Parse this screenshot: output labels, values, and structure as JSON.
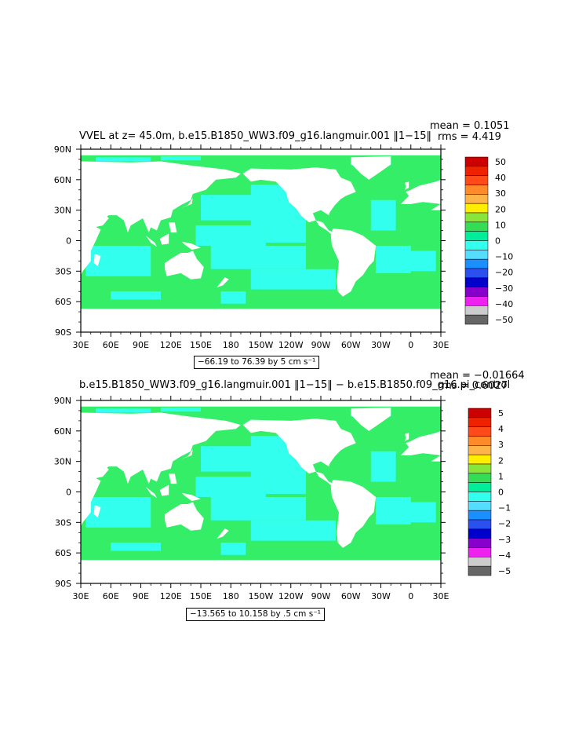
{
  "chart_data": [
    {
      "type": "heatmap",
      "title": "VVEL at z=   45.0m, b.e15.B1850_WW3.f09_g16.langmuir.001 ‖1−15‖",
      "mean_label": "mean = 0.1051",
      "rms_label": "rms = 4.419",
      "range_label": "−66.19 to 76.39 by 5 cm s⁻¹",
      "x_ticks": [
        "30E",
        "60E",
        "90E",
        "120E",
        "150E",
        "180",
        "150W",
        "120W",
        "90W",
        "60W",
        "30W",
        "0",
        "30E"
      ],
      "y_ticks": [
        "90N",
        "60N",
        "30N",
        "0",
        "30S",
        "60S",
        "90S"
      ],
      "colorbar": {
        "labels": [
          "50",
          "40",
          "30",
          "20",
          "10",
          "0",
          "−10",
          "−20",
          "−30",
          "−40",
          "−50"
        ],
        "colors": [
          "#cc0000",
          "#ee2200",
          "#ff4a1a",
          "#ff8a2a",
          "#ffb44a",
          "#ffee00",
          "#88e63a",
          "#33dd55",
          "#00ee99",
          "#33ffee",
          "#55ddff",
          "#1a90ff",
          "#2a50f0",
          "#0000cc",
          "#8800cc",
          "#ee22ee",
          "#cccccc",
          "#666666"
        ]
      }
    },
    {
      "type": "heatmap",
      "title": "b.e15.B1850_WW3.f09_g16.langmuir.001 ‖1−15‖ − b.e15.B1850.f09_g16.pi_control",
      "mean_label": "mean = −0.01664",
      "rms_label": "rms = 0.6027",
      "range_label": "−13.565 to 10.158 by .5 cm s⁻¹",
      "x_ticks": [
        "30E",
        "60E",
        "90E",
        "120E",
        "150E",
        "180",
        "150W",
        "120W",
        "90W",
        "60W",
        "30W",
        "0",
        "30E"
      ],
      "y_ticks": [
        "90N",
        "60N",
        "30N",
        "0",
        "30S",
        "60S",
        "90S"
      ],
      "colorbar": {
        "labels": [
          "5",
          "4",
          "3",
          "2",
          "1",
          "0",
          "−1",
          "−2",
          "−3",
          "−4",
          "−5"
        ],
        "colors": [
          "#cc0000",
          "#ee2200",
          "#ff4a1a",
          "#ff8a2a",
          "#ffb44a",
          "#ffee00",
          "#88e63a",
          "#33dd55",
          "#00ee99",
          "#33ffee",
          "#55ddff",
          "#1a90ff",
          "#2a50f0",
          "#0000cc",
          "#8800cc",
          "#ee22ee",
          "#cccccc",
          "#666666"
        ]
      }
    }
  ]
}
